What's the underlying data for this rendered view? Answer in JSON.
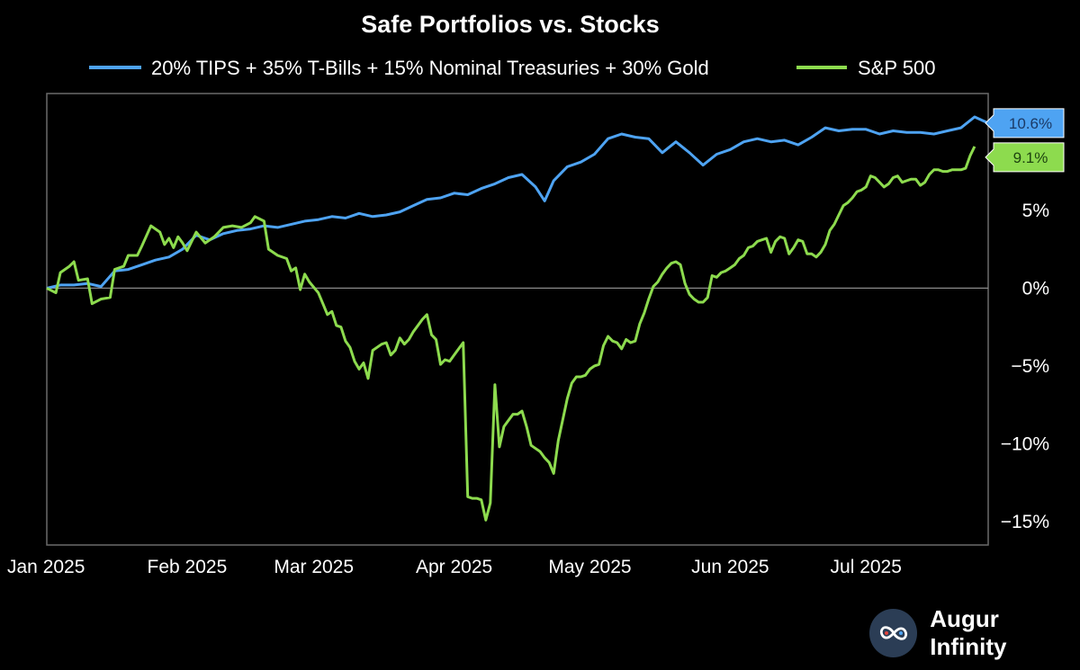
{
  "brand": {
    "name": "Augur Infinity",
    "logo_icon": "infinity-icon"
  },
  "chart_data": {
    "type": "line",
    "title": "Safe Portfolios vs. Stocks",
    "xlabel": "",
    "ylabel": "",
    "ylim": [
      -16.5,
      12.5
    ],
    "xlim": [
      0,
      208
    ],
    "yticks": [
      {
        "v": 5,
        "label": "5%"
      },
      {
        "v": 0,
        "label": "0%"
      },
      {
        "v": -5,
        "label": "−5%"
      },
      {
        "v": -10,
        "label": "−10%"
      },
      {
        "v": -15,
        "label": "−15%"
      }
    ],
    "xticks": [
      {
        "x": 0,
        "label": "Jan 2025"
      },
      {
        "x": 31,
        "label": "Feb 2025"
      },
      {
        "x": 59,
        "label": "Mar 2025"
      },
      {
        "x": 90,
        "label": "Apr 2025"
      },
      {
        "x": 120,
        "label": "May 2025"
      },
      {
        "x": 151,
        "label": "Jun 2025"
      },
      {
        "x": 181,
        "label": "Jul 2025"
      }
    ],
    "grid": false,
    "zero_line": true,
    "legend": "top",
    "series": [
      {
        "name": "20% TIPS + 35% T-Bills + 15% Nominal Treasuries + 30% Gold",
        "color": "#4ea3f2",
        "end_label": "10.6%",
        "points": [
          [
            0,
            0
          ],
          [
            3,
            0.2
          ],
          [
            6,
            0.2
          ],
          [
            9,
            0.3
          ],
          [
            12,
            0.1
          ],
          [
            15,
            1.1
          ],
          [
            18,
            1.2
          ],
          [
            21,
            1.5
          ],
          [
            24,
            1.8
          ],
          [
            27,
            2.0
          ],
          [
            30,
            2.5
          ],
          [
            33,
            3.4
          ],
          [
            36,
            3.1
          ],
          [
            39,
            3.5
          ],
          [
            42,
            3.7
          ],
          [
            45,
            3.8
          ],
          [
            48,
            4.0
          ],
          [
            51,
            3.9
          ],
          [
            54,
            4.1
          ],
          [
            57,
            4.3
          ],
          [
            60,
            4.4
          ],
          [
            63,
            4.6
          ],
          [
            66,
            4.5
          ],
          [
            69,
            4.8
          ],
          [
            72,
            4.6
          ],
          [
            75,
            4.7
          ],
          [
            78,
            4.9
          ],
          [
            81,
            5.3
          ],
          [
            84,
            5.7
          ],
          [
            87,
            5.8
          ],
          [
            90,
            6.1
          ],
          [
            93,
            6.0
          ],
          [
            96,
            6.4
          ],
          [
            99,
            6.7
          ],
          [
            102,
            7.1
          ],
          [
            105,
            7.3
          ],
          [
            108,
            6.5
          ],
          [
            110,
            5.6
          ],
          [
            112,
            6.9
          ],
          [
            115,
            7.8
          ],
          [
            118,
            8.1
          ],
          [
            121,
            8.6
          ],
          [
            124,
            9.6
          ],
          [
            127,
            9.9
          ],
          [
            130,
            9.7
          ],
          [
            133,
            9.6
          ],
          [
            136,
            8.7
          ],
          [
            139,
            9.4
          ],
          [
            142,
            8.7
          ],
          [
            145,
            7.9
          ],
          [
            148,
            8.6
          ],
          [
            151,
            8.9
          ],
          [
            154,
            9.4
          ],
          [
            157,
            9.6
          ],
          [
            160,
            9.4
          ],
          [
            163,
            9.5
          ],
          [
            166,
            9.2
          ],
          [
            169,
            9.7
          ],
          [
            172,
            10.3
          ],
          [
            175,
            10.1
          ],
          [
            178,
            10.2
          ],
          [
            181,
            10.2
          ],
          [
            184,
            9.9
          ],
          [
            187,
            10.1
          ],
          [
            190,
            10.0
          ],
          [
            193,
            10.0
          ],
          [
            196,
            9.9
          ],
          [
            199,
            10.1
          ],
          [
            202,
            10.3
          ],
          [
            205,
            11.0
          ],
          [
            208,
            10.6
          ]
        ]
      },
      {
        "name": "S&P 500",
        "color": "#8ddb4e",
        "end_label": "9.1%",
        "points": [
          [
            0,
            0
          ],
          [
            2,
            -0.3
          ],
          [
            3,
            1.0
          ],
          [
            5,
            1.4
          ],
          [
            6,
            1.7
          ],
          [
            7,
            0.5
          ],
          [
            9,
            0.6
          ],
          [
            10,
            -1.0
          ],
          [
            12,
            -0.7
          ],
          [
            14,
            -0.6
          ],
          [
            15,
            1.2
          ],
          [
            17,
            1.4
          ],
          [
            18,
            2.1
          ],
          [
            20,
            2.1
          ],
          [
            21,
            2.7
          ],
          [
            23,
            4.0
          ],
          [
            25,
            3.6
          ],
          [
            26,
            2.8
          ],
          [
            27,
            3.2
          ],
          [
            28,
            2.6
          ],
          [
            29,
            3.3
          ],
          [
            30,
            2.9
          ],
          [
            31,
            2.4
          ],
          [
            33,
            3.6
          ],
          [
            35,
            2.9
          ],
          [
            37,
            3.3
          ],
          [
            39,
            3.9
          ],
          [
            41,
            4.0
          ],
          [
            43,
            3.9
          ],
          [
            45,
            4.2
          ],
          [
            46,
            4.6
          ],
          [
            48,
            4.3
          ],
          [
            49,
            2.5
          ],
          [
            51,
            2.1
          ],
          [
            53,
            1.9
          ],
          [
            54,
            1.1
          ],
          [
            55,
            1.3
          ],
          [
            56,
            -0.1
          ],
          [
            57,
            0.9
          ],
          [
            58,
            0.4
          ],
          [
            60,
            -0.3
          ],
          [
            61,
            -1.0
          ],
          [
            62,
            -1.7
          ],
          [
            63,
            -1.5
          ],
          [
            64,
            -2.4
          ],
          [
            65,
            -2.5
          ],
          [
            66,
            -3.4
          ],
          [
            67,
            -3.8
          ],
          [
            68,
            -4.7
          ],
          [
            69,
            -5.2
          ],
          [
            70,
            -4.8
          ],
          [
            71,
            -5.8
          ],
          [
            72,
            -4.0
          ],
          [
            74,
            -3.6
          ],
          [
            75,
            -3.5
          ],
          [
            76,
            -4.3
          ],
          [
            77,
            -4.0
          ],
          [
            78,
            -3.2
          ],
          [
            79,
            -3.6
          ],
          [
            80,
            -3.3
          ],
          [
            81,
            -2.8
          ],
          [
            82,
            -2.4
          ],
          [
            83,
            -2.0
          ],
          [
            84,
            -1.7
          ],
          [
            85,
            -3.0
          ],
          [
            86,
            -3.3
          ],
          [
            87,
            -4.9
          ],
          [
            88,
            -4.6
          ],
          [
            89,
            -4.7
          ],
          [
            90,
            -4.3
          ],
          [
            91,
            -3.9
          ],
          [
            92,
            -3.5
          ],
          [
            93,
            -13.4
          ],
          [
            94,
            -13.5
          ],
          [
            95,
            -13.5
          ],
          [
            96,
            -13.6
          ],
          [
            97,
            -14.9
          ],
          [
            98,
            -13.8
          ],
          [
            99,
            -6.2
          ],
          [
            100,
            -10.2
          ],
          [
            101,
            -8.9
          ],
          [
            102,
            -8.5
          ],
          [
            103,
            -8.1
          ],
          [
            104,
            -8.1
          ],
          [
            105,
            -7.9
          ],
          [
            106,
            -8.9
          ],
          [
            107,
            -10.1
          ],
          [
            108,
            -10.3
          ],
          [
            109,
            -10.5
          ],
          [
            110,
            -10.9
          ],
          [
            111,
            -11.2
          ],
          [
            112,
            -11.9
          ],
          [
            113,
            -9.8
          ],
          [
            115,
            -7.1
          ],
          [
            116,
            -6.1
          ],
          [
            117,
            -5.7
          ],
          [
            118,
            -5.7
          ],
          [
            119,
            -5.6
          ],
          [
            120,
            -5.2
          ],
          [
            121,
            -5.0
          ],
          [
            122,
            -4.9
          ],
          [
            123,
            -3.7
          ],
          [
            124,
            -3.1
          ],
          [
            125,
            -3.4
          ],
          [
            126,
            -3.5
          ],
          [
            127,
            -3.9
          ],
          [
            128,
            -3.3
          ],
          [
            129,
            -3.5
          ],
          [
            130,
            -3.4
          ],
          [
            131,
            -2.3
          ],
          [
            132,
            -1.6
          ],
          [
            133,
            -0.7
          ],
          [
            134,
            0.1
          ],
          [
            135,
            0.4
          ],
          [
            136,
            0.9
          ],
          [
            137,
            1.3
          ],
          [
            138,
            1.6
          ],
          [
            139,
            1.7
          ],
          [
            140,
            1.5
          ],
          [
            141,
            0.3
          ],
          [
            142,
            -0.4
          ],
          [
            143,
            -0.7
          ],
          [
            144,
            -0.9
          ],
          [
            145,
            -0.9
          ],
          [
            146,
            -0.6
          ],
          [
            147,
            0.8
          ],
          [
            148,
            0.7
          ],
          [
            149,
            1.0
          ],
          [
            150,
            1.1
          ],
          [
            151,
            1.3
          ],
          [
            152,
            1.5
          ],
          [
            153,
            1.9
          ],
          [
            154,
            2.1
          ],
          [
            155,
            2.6
          ],
          [
            156,
            2.7
          ],
          [
            157,
            3.0
          ],
          [
            158,
            3.1
          ],
          [
            159,
            3.2
          ],
          [
            160,
            2.3
          ],
          [
            161,
            3.0
          ],
          [
            162,
            3.3
          ],
          [
            163,
            3.2
          ],
          [
            164,
            2.2
          ],
          [
            165,
            2.6
          ],
          [
            166,
            3.1
          ],
          [
            167,
            3.0
          ],
          [
            168,
            2.2
          ],
          [
            169,
            2.2
          ],
          [
            170,
            2.0
          ],
          [
            171,
            2.3
          ],
          [
            172,
            2.8
          ],
          [
            173,
            3.7
          ],
          [
            174,
            4.1
          ],
          [
            175,
            4.7
          ],
          [
            176,
            5.3
          ],
          [
            177,
            5.5
          ],
          [
            178,
            5.8
          ],
          [
            179,
            6.2
          ],
          [
            180,
            6.3
          ],
          [
            181,
            6.5
          ],
          [
            182,
            7.2
          ],
          [
            183,
            7.1
          ],
          [
            184,
            6.8
          ],
          [
            185,
            6.5
          ],
          [
            186,
            6.7
          ],
          [
            187,
            7.1
          ],
          [
            188,
            7.2
          ],
          [
            189,
            6.8
          ],
          [
            190,
            6.9
          ],
          [
            191,
            7.0
          ],
          [
            192,
            7.0
          ],
          [
            193,
            6.6
          ],
          [
            194,
            6.8
          ],
          [
            195,
            7.3
          ],
          [
            196,
            7.6
          ],
          [
            197,
            7.6
          ],
          [
            198,
            7.5
          ],
          [
            199,
            7.5
          ],
          [
            200,
            7.6
          ],
          [
            201,
            7.6
          ],
          [
            202,
            7.6
          ],
          [
            203,
            7.7
          ],
          [
            204,
            8.5
          ],
          [
            205,
            9.1
          ]
        ]
      }
    ]
  }
}
